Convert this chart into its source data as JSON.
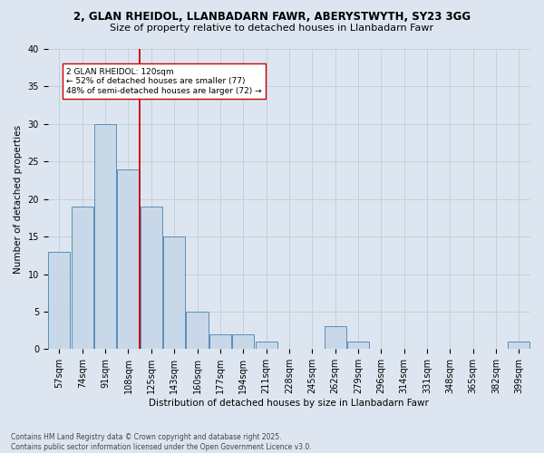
{
  "title1": "2, GLAN RHEIDOL, LLANBADARN FAWR, ABERYSTWYTH, SY23 3GG",
  "title2": "Size of property relative to detached houses in Llanbadarn Fawr",
  "xlabel": "Distribution of detached houses by size in Llanbadarn Fawr",
  "ylabel": "Number of detached properties",
  "categories": [
    "57sqm",
    "74sqm",
    "91sqm",
    "108sqm",
    "125sqm",
    "143sqm",
    "160sqm",
    "177sqm",
    "194sqm",
    "211sqm",
    "228sqm",
    "245sqm",
    "262sqm",
    "279sqm",
    "296sqm",
    "314sqm",
    "331sqm",
    "348sqm",
    "365sqm",
    "382sqm",
    "399sqm"
  ],
  "values": [
    13,
    19,
    30,
    24,
    19,
    15,
    5,
    2,
    2,
    1,
    0,
    0,
    3,
    1,
    0,
    0,
    0,
    0,
    0,
    0,
    1
  ],
  "bar_color": "#c8d8e8",
  "bar_edge_color": "#5b8db8",
  "vline_color": "#cc0000",
  "vline_x": 3.5,
  "ylim": [
    0,
    40
  ],
  "yticks": [
    0,
    5,
    10,
    15,
    20,
    25,
    30,
    35,
    40
  ],
  "annotation_text": "2 GLAN RHEIDOL: 120sqm\n← 52% of detached houses are smaller (77)\n48% of semi-detached houses are larger (72) →",
  "annotation_box_facecolor": "#ffffff",
  "annotation_box_edgecolor": "#cc0000",
  "footer": "Contains HM Land Registry data © Crown copyright and database right 2025.\nContains public sector information licensed under the Open Government Licence v3.0.",
  "grid_color": "#c0ccd8",
  "background_color": "#dde6f0",
  "title1_fontsize": 8.5,
  "title2_fontsize": 8,
  "xlabel_fontsize": 7.5,
  "ylabel_fontsize": 7.5,
  "tick_fontsize": 7,
  "annotation_fontsize": 6.5,
  "footer_fontsize": 5.5
}
